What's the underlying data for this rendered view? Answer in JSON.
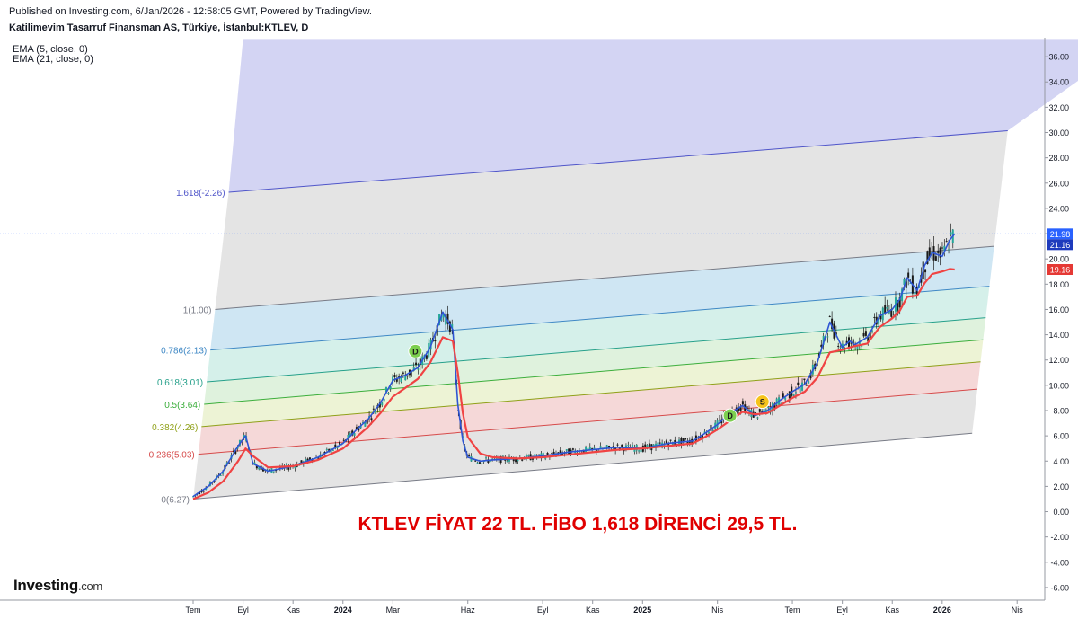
{
  "header": {
    "published": "Published on Investing.com, 6/Jan/2026 - 12:58:05 GMT, Powered by TradingView.",
    "symbol": "Katilimevim Tasarruf Finansman AS, Türkiye, İstanbul:KTLEV, D",
    "indicators": [
      "EMA (5, close, 0)",
      "EMA (21, close, 0)"
    ]
  },
  "logo": {
    "brand": "Investing",
    "suffix": ".com"
  },
  "chart_data": {
    "type": "line",
    "title": "KTLEV FİYAT 22 TL. FİBO 1,618 DİRENCİ 29,5 TL.",
    "y_range": [
      -7,
      37.5
    ],
    "y_ticks": [
      "36.00",
      "34.00",
      "32.00",
      "30.00",
      "28.00",
      "26.00",
      "24.00",
      "22.00",
      "20.00",
      "18.00",
      "16.00",
      "14.00",
      "12.00",
      "10.00",
      "8.00",
      "6.00",
      "4.00",
      "2.00",
      "0.00",
      "-2.00",
      "-4.00",
      "-6.00"
    ],
    "x_ticks": [
      "Tem",
      "Eyl",
      "Kas",
      "2024",
      "Mar",
      "Haz",
      "Eyl",
      "Kas",
      "2025",
      "Nis",
      "Tem",
      "Eyl",
      "Kas",
      "2026",
      "Nis"
    ],
    "x_tick_pos": [
      0,
      2,
      4,
      6,
      8,
      11,
      14,
      16,
      18,
      21,
      24,
      26,
      28,
      30,
      33
    ],
    "x_domain": [
      0,
      34
    ],
    "price_labels": [
      {
        "text": "21.98",
        "value": 21.98,
        "color": "#2962ff"
      },
      {
        "text": "21.16",
        "value": 21.16,
        "color": "#1e3bbd"
      },
      {
        "text": "19.16",
        "value": 19.16,
        "color": "#e53935"
      }
    ],
    "current_price_line": 21.98,
    "fib_channel": {
      "ratio_labels": [
        {
          "text": "1.618(-2.26)",
          "ratio": 1.618,
          "color": "#4f55c9"
        },
        {
          "text": "1(1.00)",
          "ratio": 1.0,
          "color": "#787b86"
        },
        {
          "text": "0.786(2.13)",
          "ratio": 0.786,
          "color": "#3f88c5"
        },
        {
          "text": "0.618(3.01)",
          "ratio": 0.618,
          "color": "#26a08a"
        },
        {
          "text": "0.5(3.64)",
          "ratio": 0.5,
          "color": "#3cae3c"
        },
        {
          "text": "0.382(4.26)",
          "ratio": 0.382,
          "color": "#8fa018"
        },
        {
          "text": "0.236(5.03)",
          "ratio": 0.236,
          "color": "#d64a4a"
        },
        {
          "text": "0(6.27)",
          "ratio": 0.0,
          "color": "#787b86"
        }
      ],
      "base_start": {
        "x": 0,
        "y": 1.0
      },
      "base_end": {
        "x": 31.2,
        "y": 6.2
      },
      "top_start": {
        "x": 0,
        "y": 16.0
      },
      "top_end": {
        "x": 31.2,
        "y": 21.0
      },
      "fill_colors": {
        "1.618": "#d3d4f3",
        "1": "#e4e4e4",
        "0.786": "#cfe6f3",
        "0.618": "#d5f0ea",
        "0.5": "#dff2dd",
        "0.382": "#edf3d5",
        "0.236": "#f5d8d8",
        "0": "#e4e4e4"
      }
    },
    "series": [
      {
        "name": "EMA (5, close, 0)",
        "color": "#2e55d4",
        "x": [
          0,
          0.6,
          1.2,
          1.8,
          2.1,
          2.4,
          3,
          4,
          5,
          6,
          6.6,
          7,
          7.5,
          8,
          8.5,
          9,
          9.5,
          10,
          10.4,
          10.6,
          10.8,
          11,
          11.5,
          12,
          13,
          14,
          15,
          16,
          17,
          18,
          19,
          20,
          20.5,
          21,
          21.5,
          22,
          22.5,
          23,
          23.5,
          24,
          24.5,
          25,
          25.5,
          26,
          26.3,
          26.5,
          27,
          27.5,
          28,
          28.3,
          28.6,
          29,
          29.3,
          29.6,
          30,
          30.3,
          30.5
        ],
        "y": [
          1.2,
          2.0,
          3.2,
          5.2,
          6.0,
          3.8,
          3.2,
          3.6,
          4.3,
          5.4,
          6.6,
          7.3,
          8.6,
          10.4,
          10.8,
          11.4,
          13.0,
          15.8,
          14.4,
          8.5,
          5.6,
          4.3,
          4.0,
          4.1,
          4.2,
          4.4,
          4.7,
          4.9,
          5.1,
          5.0,
          5.4,
          5.6,
          6.2,
          6.9,
          7.8,
          8.4,
          7.6,
          8.0,
          8.8,
          9.5,
          10.1,
          11.8,
          15.0,
          13.0,
          13.5,
          13.2,
          13.8,
          15.5,
          16.0,
          16.8,
          18.5,
          17.5,
          19.5,
          20.5,
          20.2,
          21.5,
          21.98
        ]
      },
      {
        "name": "EMA (21, close, 0)",
        "color": "#f04343",
        "x": [
          0,
          0.6,
          1.2,
          1.8,
          2.1,
          2.4,
          3,
          4,
          5,
          6,
          6.6,
          7,
          7.5,
          8,
          8.5,
          9,
          9.5,
          10,
          10.4,
          10.6,
          10.8,
          11,
          11.5,
          12,
          13,
          14,
          15,
          16,
          17,
          18,
          19,
          20,
          20.5,
          21,
          21.5,
          22,
          22.5,
          23,
          23.5,
          24,
          24.5,
          25,
          25.5,
          26,
          26.3,
          26.5,
          27,
          27.5,
          28,
          28.3,
          28.6,
          29,
          29.3,
          29.6,
          30,
          30.3,
          30.5
        ],
        "y": [
          1.0,
          1.5,
          2.4,
          4.0,
          5.0,
          4.4,
          3.5,
          3.6,
          4.1,
          5.0,
          6.0,
          6.7,
          7.8,
          9.1,
          9.8,
          10.5,
          11.8,
          13.8,
          13.5,
          11.0,
          7.8,
          5.9,
          4.6,
          4.3,
          4.2,
          4.3,
          4.5,
          4.7,
          4.9,
          5.0,
          5.2,
          5.4,
          5.9,
          6.5,
          7.2,
          7.9,
          7.7,
          7.8,
          8.4,
          9.0,
          9.5,
          10.6,
          12.6,
          12.8,
          13.0,
          13.1,
          13.3,
          14.6,
          15.3,
          15.9,
          17.0,
          17.1,
          18.1,
          18.8,
          19.0,
          19.2,
          19.16
        ]
      }
    ],
    "markers": [
      {
        "text": "D",
        "x": 8.9,
        "y": 12.7,
        "color": "#7ccf4f"
      },
      {
        "text": "D",
        "x": 21.5,
        "y": 7.6,
        "color": "#7ccf4f"
      },
      {
        "text": "S",
        "x": 22.8,
        "y": 8.7,
        "color": "#f6c31a"
      }
    ]
  }
}
